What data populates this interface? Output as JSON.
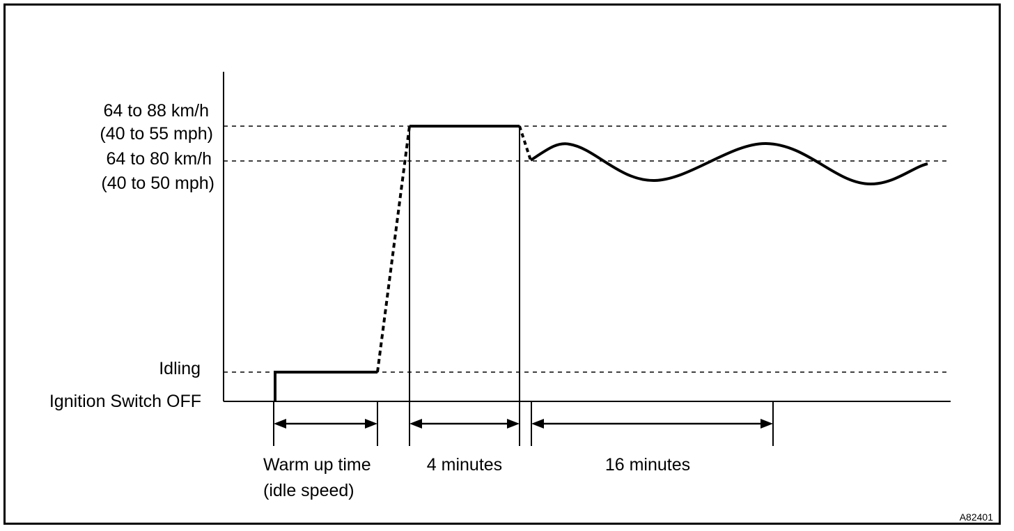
{
  "colors": {
    "ink": "#000000",
    "background": "#ffffff"
  },
  "y_labels": {
    "upper_kmh": "64 to 88 km/h",
    "upper_mph": "(40 to 55 mph)",
    "lower_kmh": "64 to 80 km/h",
    "lower_mph": "(40 to 50 mph)",
    "idling": "Idling",
    "ignition_off": "Ignition Switch OFF"
  },
  "durations": {
    "warmup_line1": "Warm up time",
    "warmup_line2": "(idle speed)",
    "four_minutes": "4 minutes",
    "sixteen_minutes": "16 minutes"
  },
  "figure_code": "A82401"
}
